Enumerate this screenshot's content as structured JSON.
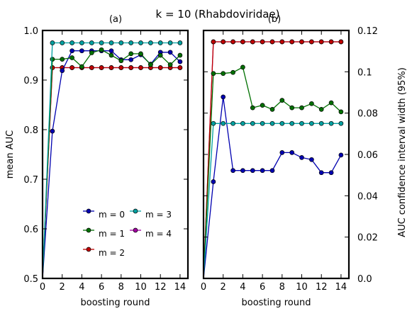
{
  "figure": {
    "title": "k = 10 (Rhabdoviridae)",
    "panel_a_label": "(a)",
    "panel_b_label": "(b)"
  },
  "chart_data": [
    {
      "type": "line",
      "panel": "(a)",
      "xlabel": "boosting round",
      "ylabel": "mean AUC",
      "xlim": [
        0,
        14.8
      ],
      "ylim": [
        0.5,
        1.0
      ],
      "xticks": [
        0,
        2,
        4,
        6,
        8,
        10,
        12,
        14
      ],
      "yticks": [
        0.5,
        0.6,
        0.7,
        0.8,
        0.9,
        1.0
      ],
      "ytick_labels": [
        "0.5",
        "0.6",
        "0.7",
        "0.8",
        "0.9",
        "1.0"
      ],
      "legend": {
        "position": "lower-center",
        "entries": [
          "m = 0",
          "m = 1",
          "m = 2",
          "m = 3",
          "m = 4"
        ]
      },
      "x": [
        0,
        1,
        2,
        3,
        4,
        5,
        6,
        7,
        8,
        9,
        10,
        11,
        12,
        13,
        14
      ],
      "series": [
        {
          "name": "m = 0",
          "color": "#0000b0",
          "values": [
            0.5,
            0.797,
            0.919,
            0.959,
            0.959,
            0.959,
            0.959,
            0.959,
            0.941,
            0.941,
            0.951,
            0.932,
            0.956,
            0.956,
            0.937
          ]
        },
        {
          "name": "m = 1",
          "color": "#007000",
          "values": [
            0.5,
            0.942,
            0.942,
            0.945,
            0.927,
            0.955,
            0.961,
            0.95,
            0.939,
            0.953,
            0.953,
            0.931,
            0.95,
            0.931,
            0.95
          ]
        },
        {
          "name": "m = 2",
          "color": "#c00000",
          "values": [
            0.5,
            0.925,
            0.925,
            0.925,
            0.925,
            0.925,
            0.925,
            0.925,
            0.925,
            0.925,
            0.925,
            0.925,
            0.925,
            0.925,
            0.925
          ]
        },
        {
          "name": "m = 3",
          "color": "#00a0a0",
          "values": [
            0.5,
            0.975,
            0.975,
            0.975,
            0.975,
            0.975,
            0.975,
            0.975,
            0.975,
            0.975,
            0.975,
            0.975,
            0.975,
            0.975,
            0.975
          ]
        },
        {
          "name": "m = 4",
          "color": "#a000a0",
          "values": [
            0.5,
            0.925,
            0.925,
            0.925,
            0.925,
            0.925,
            0.925,
            0.925,
            0.925,
            0.925,
            0.925,
            0.925,
            0.925,
            0.925,
            0.925
          ]
        }
      ]
    },
    {
      "type": "line",
      "panel": "(b)",
      "xlabel": "boosting round",
      "ylabel": "AUC confidence interval width (95%)",
      "xlim": [
        0,
        14.8
      ],
      "ylim": [
        0.0,
        0.12
      ],
      "xticks": [
        0,
        2,
        4,
        6,
        8,
        10,
        12,
        14
      ],
      "yticks": [
        0.0,
        0.02,
        0.04,
        0.06,
        0.08,
        0.1,
        0.12
      ],
      "ytick_labels": [
        "0.0",
        "0.02",
        "0.04",
        "0.06",
        "0.08",
        "0.1",
        "0.12"
      ],
      "x": [
        0,
        1,
        2,
        3,
        4,
        5,
        6,
        7,
        8,
        9,
        10,
        11,
        12,
        13,
        14
      ],
      "series": [
        {
          "name": "m = 0",
          "color": "#0000b0",
          "values": [
            0.0,
            0.0468,
            0.0878,
            0.0522,
            0.0522,
            0.0522,
            0.0522,
            0.0522,
            0.0609,
            0.0609,
            0.0585,
            0.0575,
            0.0512,
            0.0512,
            0.0597
          ]
        },
        {
          "name": "m = 1",
          "color": "#007000",
          "values": [
            0.0,
            0.0992,
            0.0992,
            0.0997,
            0.1022,
            0.0826,
            0.0838,
            0.0818,
            0.0862,
            0.0826,
            0.0826,
            0.0846,
            0.0818,
            0.085,
            0.0806
          ]
        },
        {
          "name": "m = 2",
          "color": "#c00000",
          "values": [
            0.0,
            0.1145,
            0.1145,
            0.1145,
            0.1145,
            0.1145,
            0.1145,
            0.1145,
            0.1145,
            0.1145,
            0.1145,
            0.1145,
            0.1145,
            0.1145,
            0.1145
          ]
        },
        {
          "name": "m = 3",
          "color": "#00a0a0",
          "values": [
            0.0,
            0.075,
            0.075,
            0.075,
            0.075,
            0.075,
            0.075,
            0.075,
            0.075,
            0.075,
            0.075,
            0.075,
            0.075,
            0.075,
            0.075
          ]
        },
        {
          "name": "m = 4",
          "color": "#a000a0",
          "values": [
            0.0,
            0.1145,
            0.1145,
            0.1145,
            0.1145,
            0.1145,
            0.1145,
            0.1145,
            0.1145,
            0.1145,
            0.1145,
            0.1145,
            0.1145,
            0.1145,
            0.1145
          ]
        }
      ]
    }
  ]
}
